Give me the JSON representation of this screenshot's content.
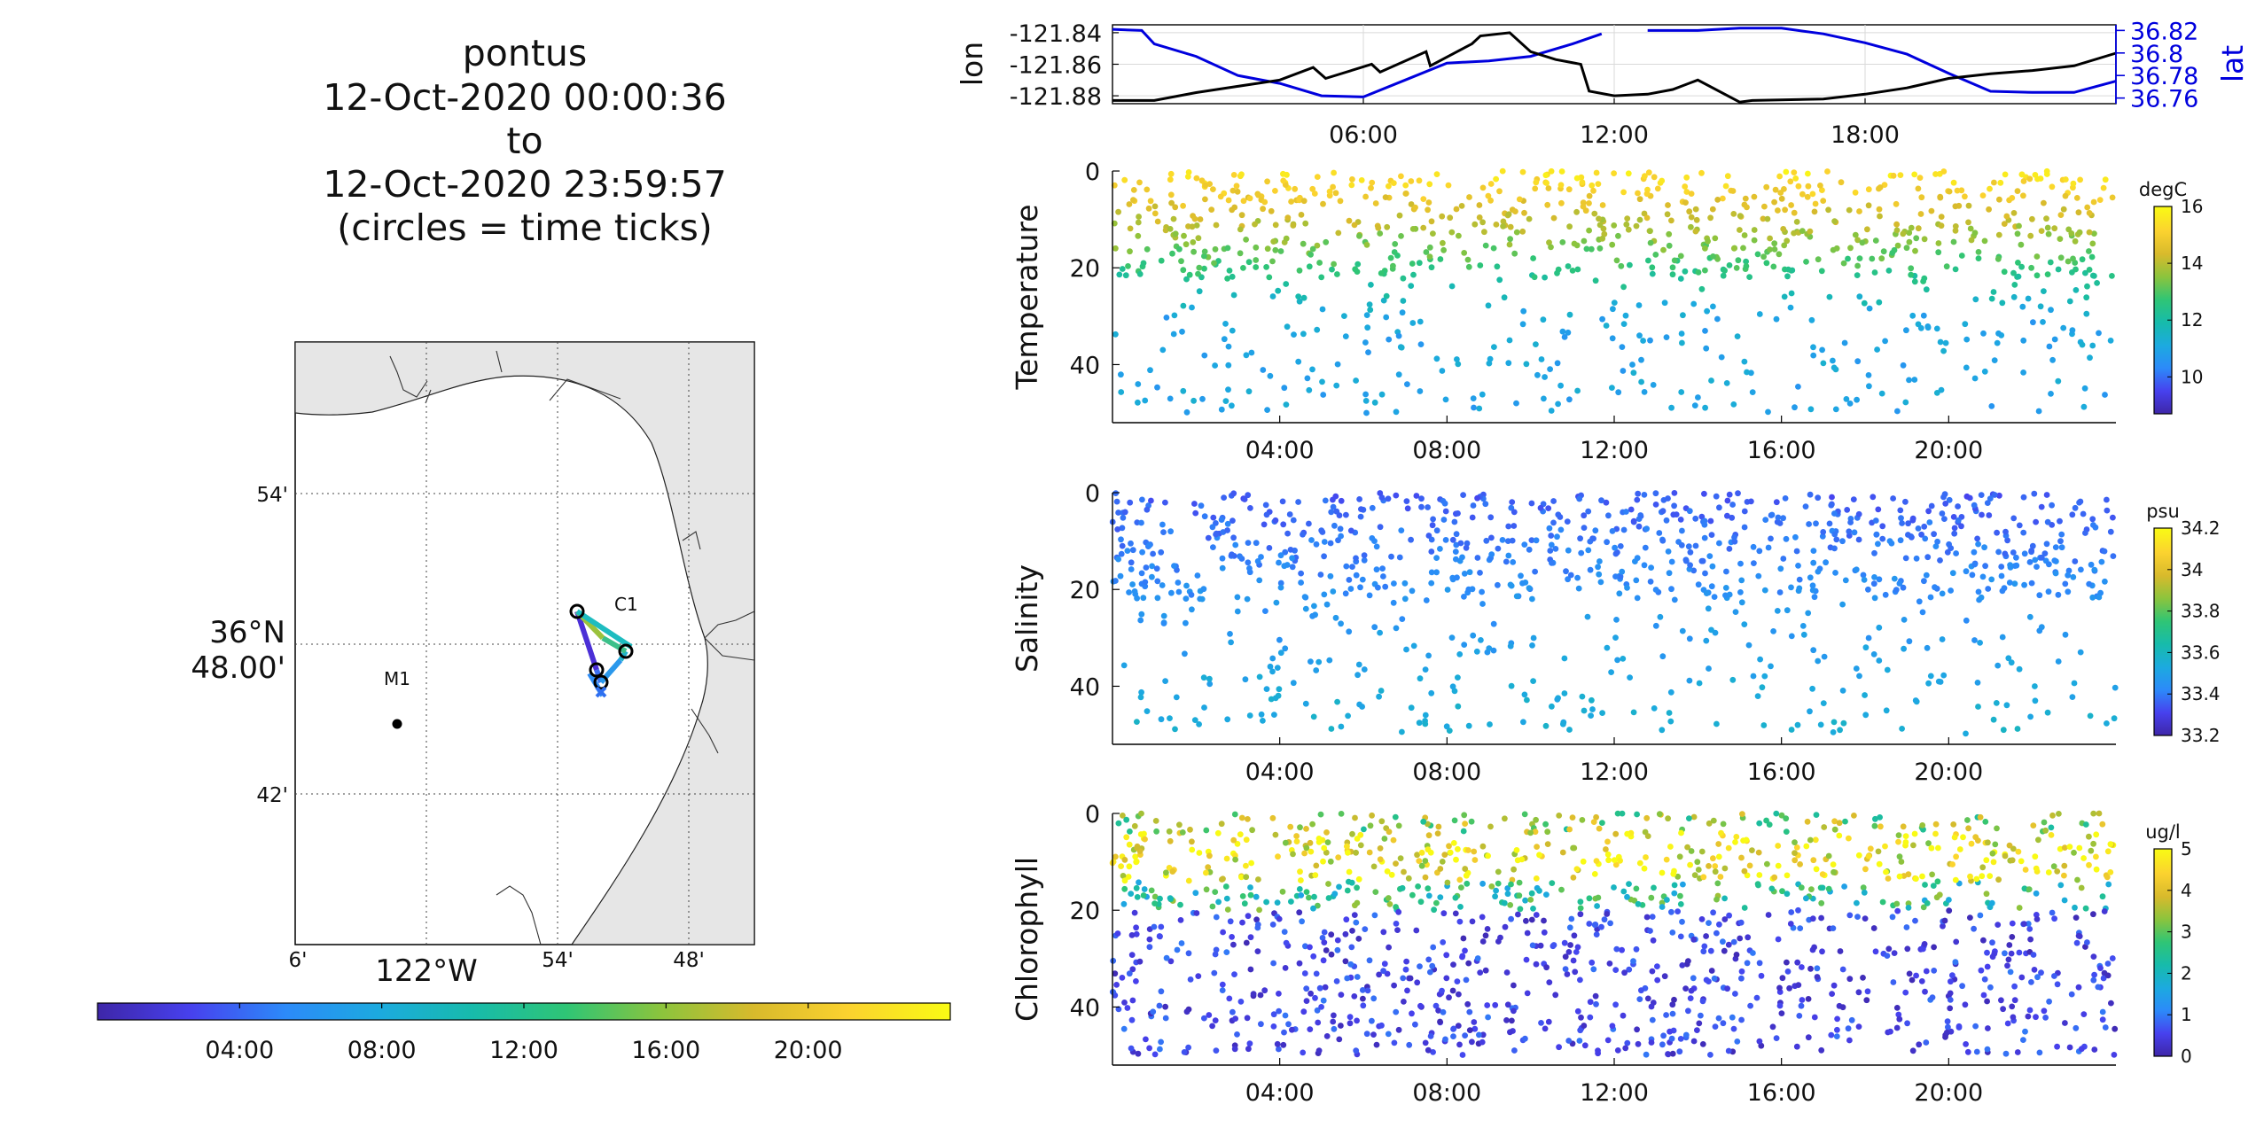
{
  "figure": {
    "title_lines": [
      "pontus",
      "12-Oct-2020 00:00:36",
      "to",
      "12-Oct-2020 23:59:57",
      "(circles = time ticks)"
    ]
  },
  "colors": {
    "lon_line": "#000000",
    "lat_line": "#0000dd",
    "land": "#e6e6e6",
    "colormap": [
      "#3e26a8",
      "#4741ee",
      "#2c8af9",
      "#1caadf",
      "#17bbab",
      "#2fc575",
      "#8bc43d",
      "#d8ba2c",
      "#fbd22f",
      "#f9fb14"
    ]
  },
  "map": {
    "lat_ticks": [
      "54'",
      "42'"
    ],
    "lat_center_deg": "36°N",
    "lat_center_min": "48.00'",
    "lon_ticks": [
      "6'",
      "54'",
      "48'"
    ],
    "lon_center": "122°W",
    "stations": [
      "C1",
      "M1"
    ],
    "time_colorbar_ticks": [
      "04:00",
      "08:00",
      "12:00",
      "16:00",
      "20:00"
    ]
  },
  "chart_data": [
    {
      "type": "line",
      "name": "position",
      "x_unit": "hours since 12-Oct-2020 00:00",
      "xlim": [
        0,
        24
      ],
      "xticks": [
        "06:00",
        "12:00",
        "18:00"
      ],
      "ylabel_left": "lon",
      "ylabel_right": "lat",
      "left_ticks": [
        "-121.84",
        "-121.86",
        "-121.88"
      ],
      "right_ticks": [
        "36.82",
        "36.8",
        "36.78",
        "36.76"
      ],
      "ylim_left": [
        -121.885,
        -121.835
      ],
      "ylim_right": [
        36.755,
        36.825
      ],
      "grid": true,
      "series": [
        {
          "name": "lon",
          "x": [
            0,
            1,
            2,
            3,
            4,
            4.8,
            5.1,
            6.2,
            6.4,
            7.5,
            7.6,
            8.6,
            8.8,
            9.5,
            10,
            10.6,
            11.2,
            11.4,
            12,
            12.8,
            13.4,
            14,
            15,
            15.3,
            17,
            18,
            19,
            20,
            21,
            22,
            23,
            24
          ],
          "y": [
            -121.883,
            -121.883,
            -121.878,
            -121.874,
            -121.87,
            -121.862,
            -121.869,
            -121.86,
            -121.865,
            -121.852,
            -121.861,
            -121.847,
            -121.842,
            -121.84,
            -121.852,
            -121.857,
            -121.86,
            -121.877,
            -121.88,
            -121.879,
            -121.876,
            -121.87,
            -121.884,
            -121.883,
            -121.882,
            -121.879,
            -121.875,
            -121.869,
            -121.866,
            -121.864,
            -121.861,
            -121.853
          ]
        },
        {
          "name": "lat",
          "x": [
            0,
            0.7,
            1,
            2,
            3,
            4,
            5,
            6,
            7,
            8,
            9,
            10,
            11,
            11.7,
            12.8,
            14,
            15,
            16,
            17,
            18,
            19,
            20,
            21,
            22,
            23,
            24
          ],
          "y": [
            36.821,
            36.82,
            36.808,
            36.797,
            36.78,
            36.773,
            36.762,
            36.761,
            36.776,
            36.791,
            36.793,
            36.797,
            36.808,
            36.817,
            36.82,
            36.82,
            36.822,
            36.822,
            36.817,
            36.809,
            36.799,
            36.782,
            36.766,
            36.765,
            36.765,
            36.775
          ]
        }
      ]
    },
    {
      "type": "scatter",
      "name": "temperature",
      "ylabel": "Temperature",
      "x_unit": "hours since 12-Oct-2020 00:00",
      "xlim": [
        0,
        24
      ],
      "xticks": [
        "04:00",
        "08:00",
        "12:00",
        "16:00",
        "20:00"
      ],
      "ylim": [
        52,
        0
      ],
      "yticks": [
        0,
        20,
        40
      ],
      "colorbar": {
        "unit": "degC",
        "min": 8.7,
        "max": 16,
        "ticks": [
          10,
          12,
          14,
          16
        ]
      }
    },
    {
      "type": "scatter",
      "name": "salinity",
      "ylabel": "Salinity",
      "x_unit": "hours since 12-Oct-2020 00:00",
      "xlim": [
        0,
        24
      ],
      "xticks": [
        "04:00",
        "08:00",
        "12:00",
        "16:00",
        "20:00"
      ],
      "ylim": [
        52,
        0
      ],
      "yticks": [
        0,
        20,
        40
      ],
      "colorbar": {
        "unit": "psu",
        "min": 33.2,
        "max": 34.2,
        "ticks": [
          33.2,
          33.4,
          33.6,
          33.8,
          34,
          34.2
        ]
      }
    },
    {
      "type": "scatter",
      "name": "chlorophyll",
      "ylabel": "Chlorophyll",
      "x_unit": "hours since 12-Oct-2020 00:00",
      "xlim": [
        0,
        24
      ],
      "xticks": [
        "04:00",
        "08:00",
        "12:00",
        "16:00",
        "20:00"
      ],
      "ylim": [
        52,
        0
      ],
      "yticks": [
        0,
        20,
        40
      ],
      "colorbar": {
        "unit": "ug/l",
        "min": 0,
        "max": 5,
        "ticks": [
          0,
          1,
          2,
          3,
          4,
          5
        ]
      }
    }
  ]
}
